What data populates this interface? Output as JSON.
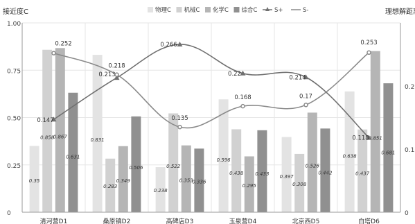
{
  "chart_data": {
    "type": "bar",
    "y_left_label": "接近度C",
    "y_right_label": "理想解距离S",
    "categories": [
      "清河营D1",
      "桑原镇D2",
      "高碑店D3",
      "玉泉营D4",
      "北京西D5",
      "白塔D6"
    ],
    "y_left_ticks": [
      "0",
      "0.25",
      "0.50",
      "0.75",
      "1.00"
    ],
    "y_right_ticks": [
      "0",
      "0.10",
      "0.20"
    ],
    "ylim_left": [
      0,
      1
    ],
    "ylim_right": [
      0,
      0.3
    ],
    "grid": true,
    "legend_position": "top-center",
    "bar_series": [
      {
        "name": "物理C",
        "color": "#e3e3e3",
        "values": [
          0.35,
          0.831,
          0.238,
          0.596,
          0.397,
          0.638
        ]
      },
      {
        "name": "机械C",
        "color": "#d1d1d1",
        "values": [
          0.858,
          0.283,
          0.522,
          0.438,
          0.308,
          0.437
        ]
      },
      {
        "name": "化学C",
        "color": "#b5b5b5",
        "values": [
          0.867,
          0.349,
          0.353,
          0.295,
          0.526,
          0.851
        ]
      },
      {
        "name": "综合C",
        "color": "#909090",
        "values": [
          0.631,
          0.506,
          0.336,
          0.433,
          0.442,
          0.681
        ]
      }
    ],
    "bar_labels": [
      [
        "0.35",
        "0.831",
        "0.238",
        "0.596",
        "0.397",
        "0.638"
      ],
      [
        "0.858",
        "0.283",
        "0.522",
        "0.438",
        "0.308",
        "0.437"
      ],
      [
        "0.867",
        "0.349",
        "0.353",
        "0.295",
        "0.526",
        "0.851"
      ],
      [
        "0.631",
        "0.506",
        "0.336",
        "0.433",
        "0.442",
        "0.681"
      ]
    ],
    "line_series": [
      {
        "name": "S+",
        "color": "#707070",
        "marker": "triangle",
        "values": [
          0.147,
          0.213,
          0.266,
          0.22,
          0.214,
          0.118
        ],
        "labels": [
          "0.147",
          "0.213",
          "0.266",
          "0.22",
          "0.214",
          "0.118"
        ]
      },
      {
        "name": "S-",
        "color": "#8a8a8a",
        "marker": "circle",
        "values": [
          0.252,
          0.218,
          0.135,
          0.168,
          0.17,
          0.253
        ],
        "labels": [
          "0.252",
          "0.218",
          "0.135",
          "0.168",
          "0.17",
          "0.253"
        ]
      }
    ]
  }
}
